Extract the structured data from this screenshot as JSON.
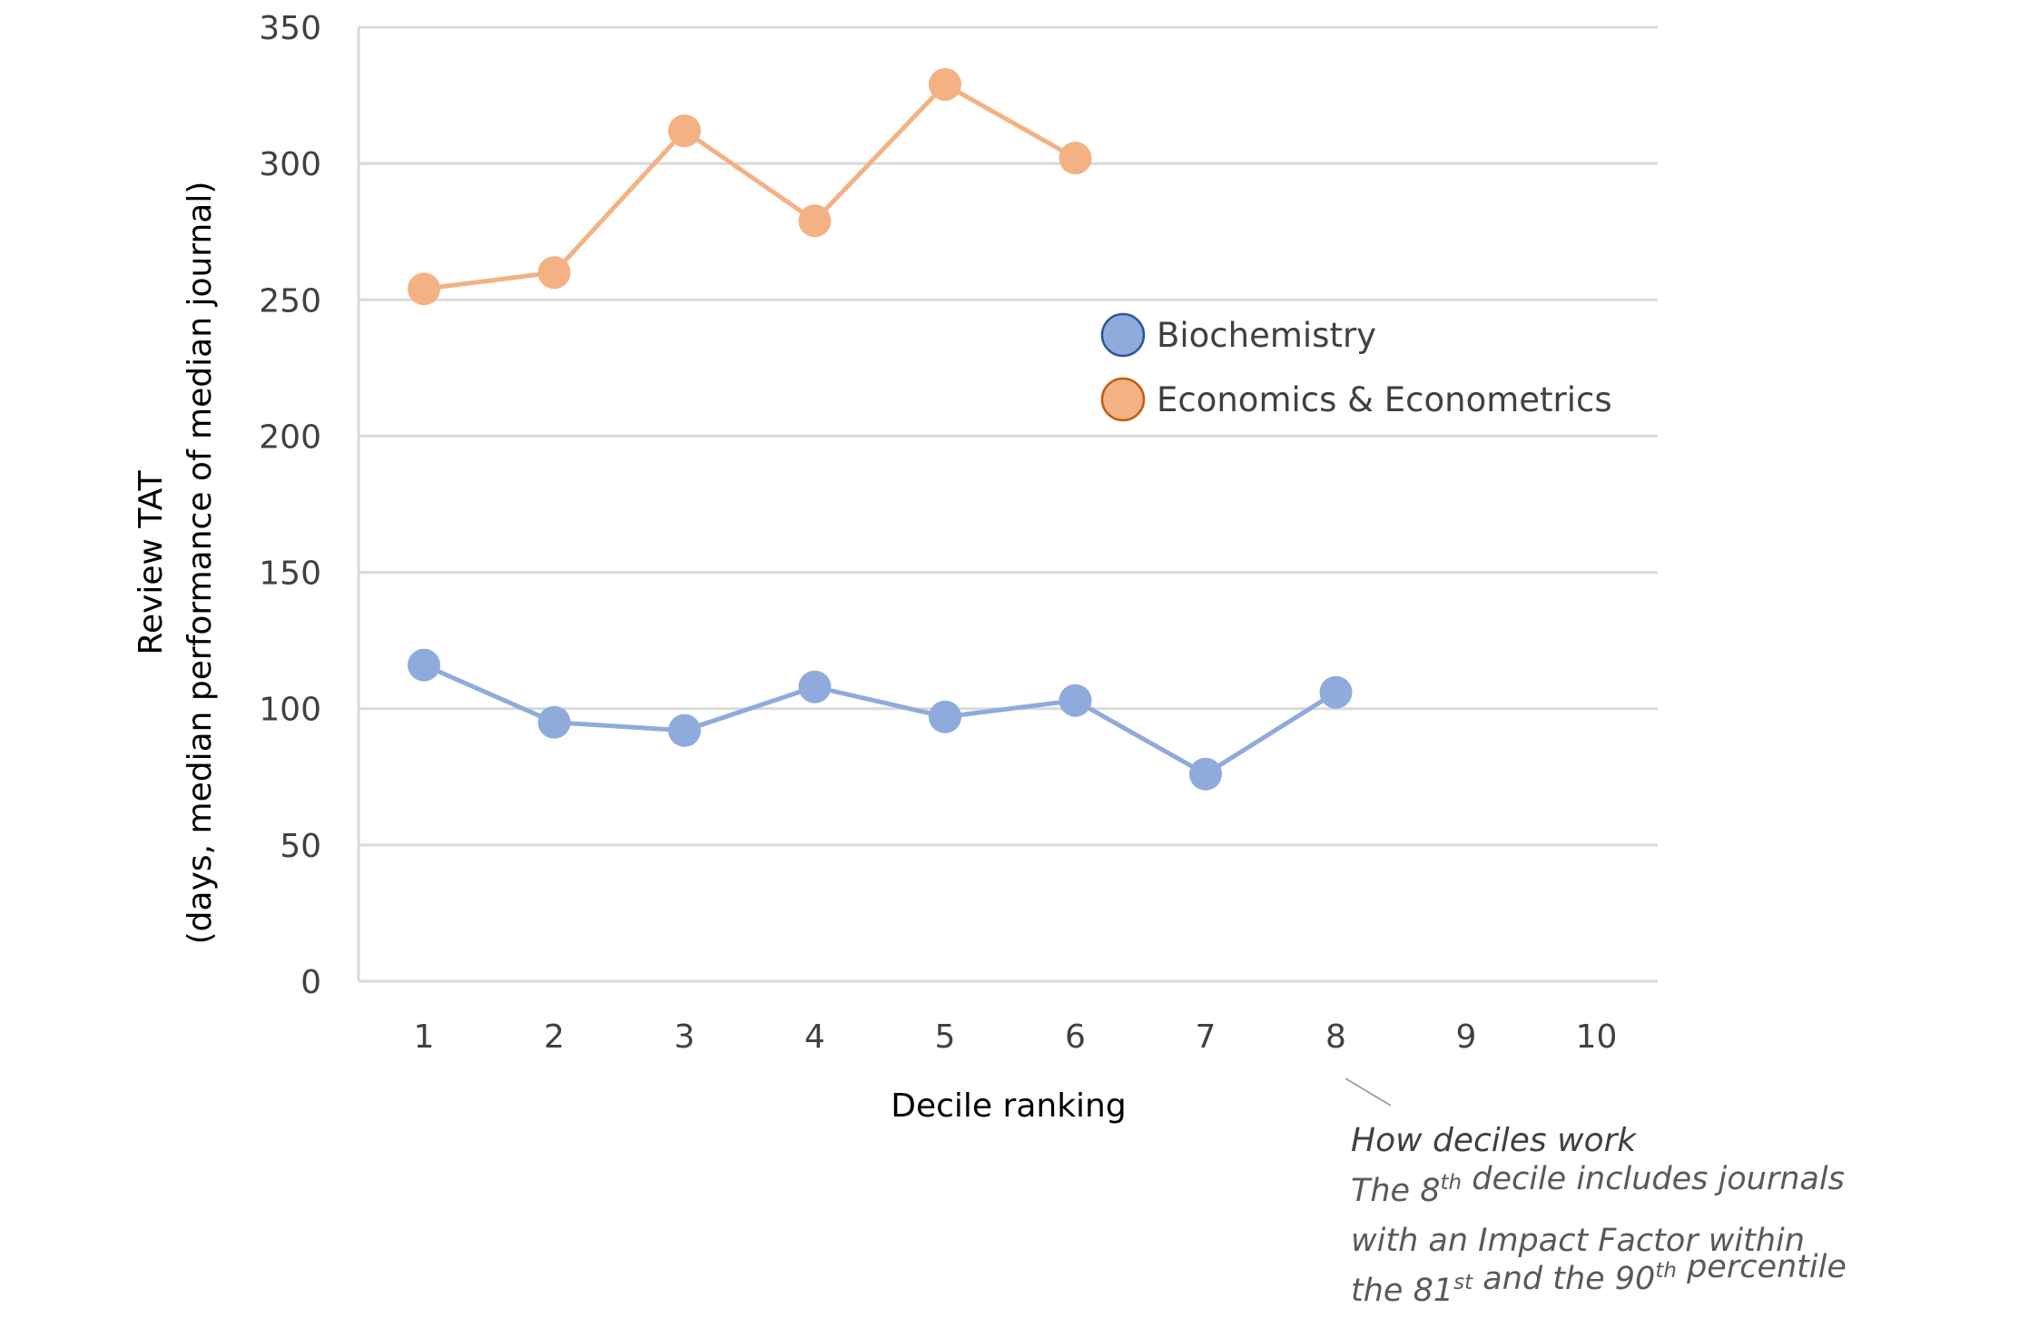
{
  "chart_data": {
    "type": "line",
    "title": "",
    "xlabel": "Decile ranking",
    "ylabel": "Review TAT",
    "ylabel_sub": "(days, median performance of median journal)",
    "ylim": [
      0,
      350
    ],
    "yticks": [
      0,
      50,
      100,
      150,
      200,
      250,
      300,
      350
    ],
    "x": [
      1,
      2,
      3,
      4,
      5,
      6,
      7,
      8,
      9,
      10
    ],
    "grid": true,
    "legend_position": "right-middle",
    "series": [
      {
        "name": "Biochemistry",
        "color": "#8faadc",
        "marker_edge": "#2f5597",
        "values": [
          116,
          95,
          92,
          108,
          97,
          103,
          76,
          106,
          null,
          null
        ]
      },
      {
        "name": "Economics & Econometrics",
        "color": "#f4b183",
        "marker_edge": "#c55a11",
        "values": [
          254,
          260,
          312,
          279,
          329,
          302,
          null,
          null,
          null,
          null
        ]
      }
    ],
    "annotation": {
      "points_to_x": 8,
      "title": "How deciles work",
      "lines": [
        {
          "pre": "The 8",
          "sup": "th",
          "post": " decile includes journals"
        },
        {
          "pre": "with an Impact Factor within",
          "sup": "",
          "post": ""
        },
        {
          "pre": "the 81",
          "sup": "st",
          "post": " and the 90",
          "sup2": "th",
          "post2": " percentile"
        }
      ]
    }
  }
}
